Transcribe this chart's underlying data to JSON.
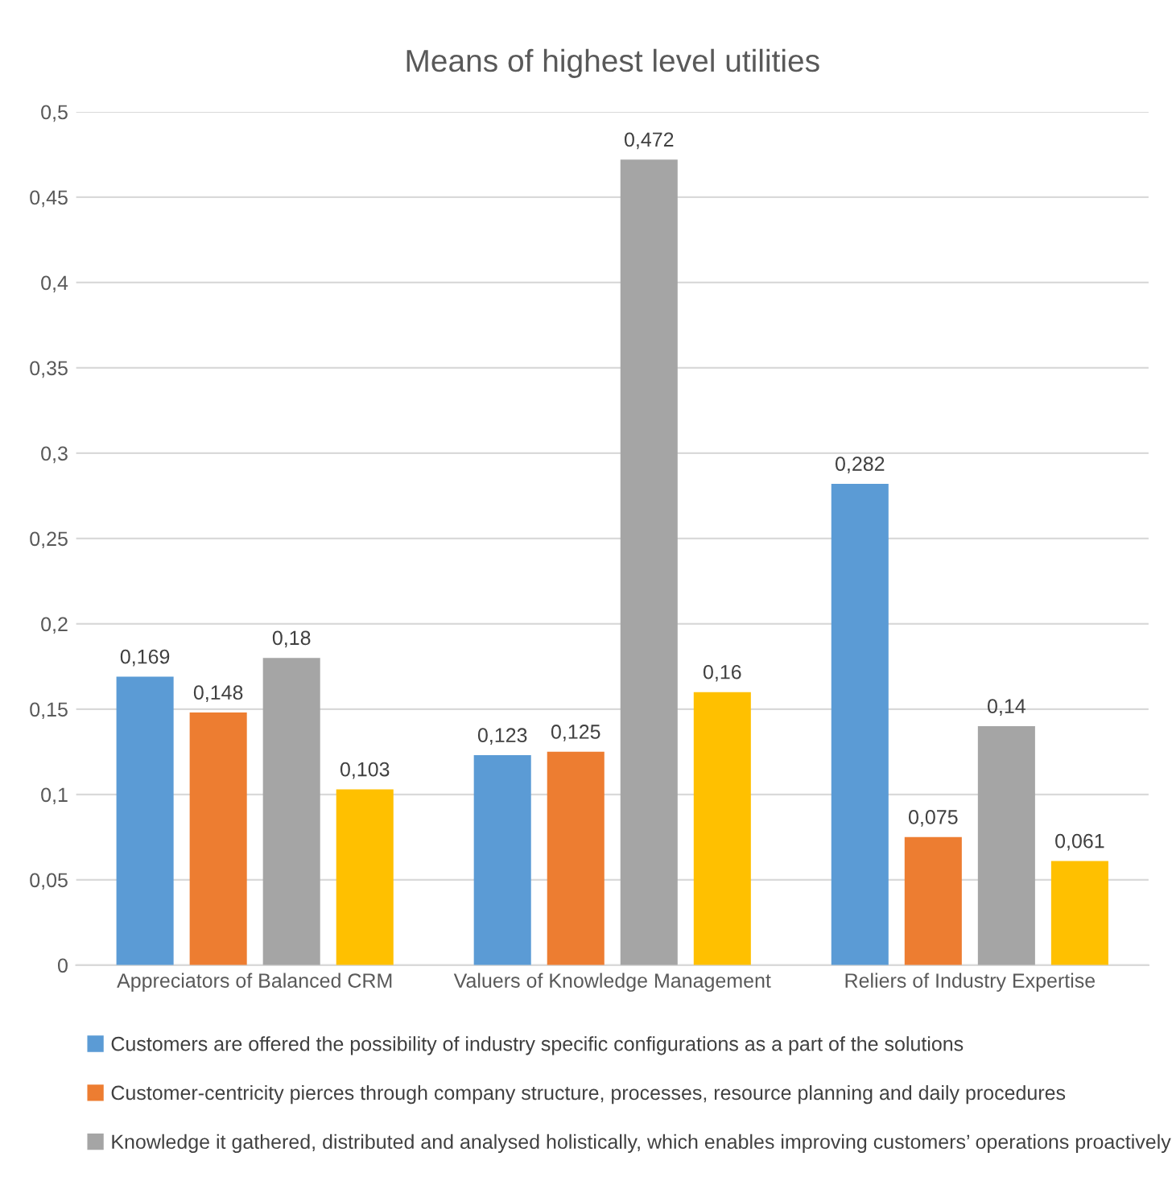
{
  "chart_data": {
    "type": "bar",
    "title": "Means of highest level utilities",
    "categories": [
      "Appreciators of Balanced CRM",
      "Valuers of Knowledge Management",
      "Reliers of Industry Expertise"
    ],
    "series": [
      {
        "name": "Customers are offered the possibility of industry specific configurations as a part of the solutions",
        "color": "#5b9bd5",
        "values": [
          0.169,
          0.123,
          0.282
        ],
        "value_labels": [
          "0,169",
          "0,123",
          "0,282"
        ]
      },
      {
        "name": "Customer-centricity pierces through company structure, processes, resource planning and daily procedures",
        "color": "#ed7d31",
        "values": [
          0.148,
          0.125,
          0.075
        ],
        "value_labels": [
          "0,148",
          "0,125",
          "0,075"
        ]
      },
      {
        "name": "Knowledge it gathered, distributed and analysed holistically, which enables improving customers’ operations proactively",
        "color": "#a5a5a5",
        "values": [
          0.18,
          0.472,
          0.14
        ],
        "value_labels": [
          "0,18",
          "0,472",
          "0,14"
        ]
      },
      {
        "color": "#ffc000",
        "values": [
          0.103,
          0.16,
          0.061
        ],
        "value_labels": [
          "0,103",
          "0,16",
          "0,061"
        ]
      }
    ],
    "ylim": [
      0,
      0.5
    ],
    "yticks": [
      0,
      {
        "value": 0.05,
        "label": "0,05"
      },
      {
        "value": 0.1,
        "label": "0,1"
      },
      {
        "value": 0.15,
        "label": "0,15"
      },
      {
        "value": 0.2,
        "label": "0,2"
      },
      {
        "value": 0.25,
        "label": "0,25"
      },
      {
        "value": 0.3,
        "label": "0,3"
      },
      {
        "value": 0.35,
        "label": "0,35"
      },
      {
        "value": 0.4,
        "label": "0,4"
      },
      {
        "value": 0.45,
        "label": "0,45"
      },
      {
        "value": 0.5,
        "label": "0,5"
      }
    ],
    "grid": "y",
    "legend": "bottom"
  }
}
